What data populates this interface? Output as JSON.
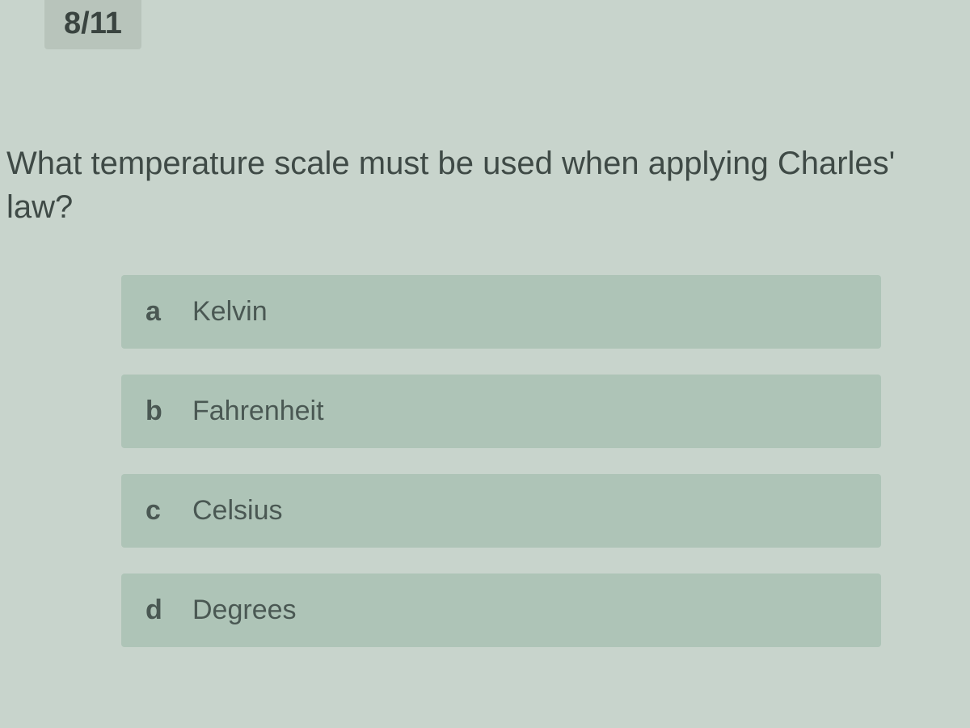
{
  "progress": {
    "label": "8/11"
  },
  "question": {
    "text": "What temperature scale must be used when applying Charles' law?"
  },
  "options": [
    {
      "letter": "a",
      "text": "Kelvin"
    },
    {
      "letter": "b",
      "text": "Fahrenheit"
    },
    {
      "letter": "c",
      "text": "Celsius"
    },
    {
      "letter": "d",
      "text": "Degrees"
    }
  ],
  "colors": {
    "background": "#c8d4cc",
    "badge_background": "#b8c4bb",
    "option_background": "#aec4b7",
    "text_primary": "#3f4a46",
    "text_secondary": "#4a5853"
  },
  "typography": {
    "question_fontsize": 40,
    "option_fontsize": 34,
    "badge_fontsize": 38
  }
}
